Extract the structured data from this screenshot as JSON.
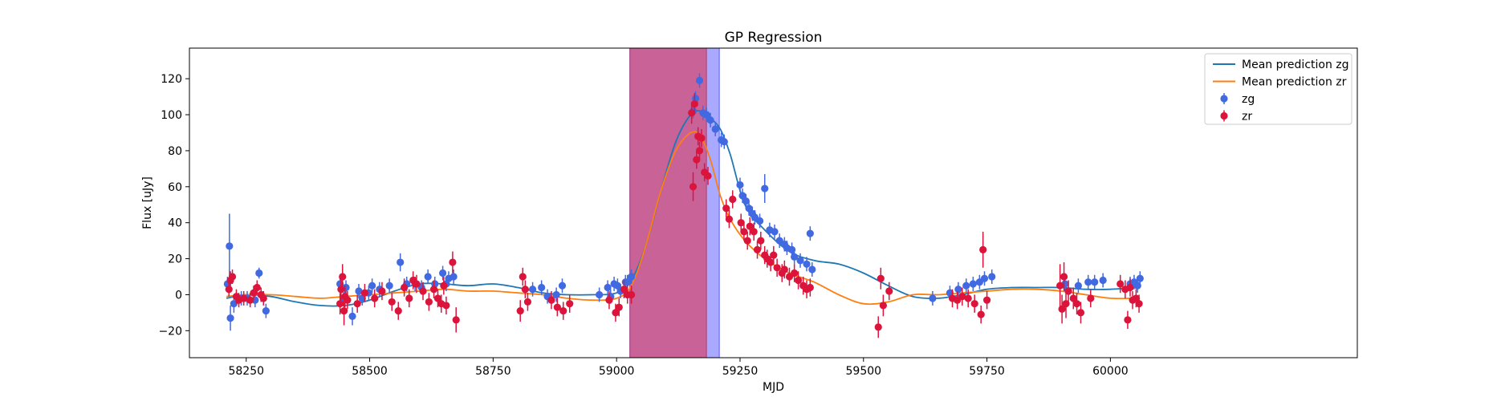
{
  "chart_data": {
    "type": "scatter",
    "title": "GP Regression",
    "xlabel": "MJD",
    "ylabel": "Flux [uJy]",
    "xlim": [
      58135,
      60500
    ],
    "ylim": [
      -35,
      137
    ],
    "xticks": [
      58250,
      58500,
      58750,
      59000,
      59250,
      59500,
      59750,
      60000
    ],
    "yticks": [
      -20,
      0,
      20,
      40,
      60,
      80,
      100,
      120
    ],
    "shaded_regions": [
      {
        "x0": 59027,
        "x1": 59208,
        "color": "#8c8cff"
      },
      {
        "x0": 59027,
        "x1": 59182,
        "color": "#cc5a8c"
      }
    ],
    "legend_position": "upper right",
    "series": [
      {
        "name": "Mean prediction zg",
        "kind": "line",
        "color": "#1f77b4",
        "x": [
          58210,
          58250,
          58300,
          58350,
          58400,
          58450,
          58500,
          58550,
          58600,
          58650,
          58700,
          58750,
          58800,
          58850,
          58900,
          58950,
          59000,
          59030,
          59060,
          59090,
          59120,
          59150,
          59170,
          59190,
          59210,
          59230,
          59260,
          59300,
          59350,
          59400,
          59450,
          59500,
          59550,
          59600,
          59650,
          59700,
          59750,
          59800,
          59850,
          59900,
          59950,
          60000,
          60050,
          60060
        ],
        "y": [
          -2,
          0,
          -1,
          -4,
          -6,
          -6,
          -3,
          2,
          6,
          6,
          5,
          6,
          4,
          1,
          0,
          0,
          1,
          8,
          28,
          58,
          85,
          100,
          102,
          98,
          92,
          78,
          50,
          36,
          24,
          19,
          17,
          12,
          5,
          -1,
          -2,
          0,
          3,
          4,
          4,
          4,
          3,
          3,
          4,
          4
        ]
      },
      {
        "name": "Mean prediction zr",
        "kind": "line",
        "color": "#ff7f0e",
        "x": [
          58210,
          58250,
          58300,
          58350,
          58400,
          58450,
          58500,
          58550,
          58600,
          58650,
          58700,
          58750,
          58800,
          58850,
          58900,
          58950,
          59000,
          59030,
          59060,
          59090,
          59120,
          59150,
          59170,
          59190,
          59210,
          59230,
          59260,
          59300,
          59350,
          59400,
          59450,
          59500,
          59550,
          59600,
          59650,
          59700,
          59750,
          59800,
          59850,
          59900,
          59950,
          60000,
          60050,
          60060
        ],
        "y": [
          -1,
          0,
          0,
          -1,
          -2,
          -1,
          0,
          1,
          2,
          3,
          2,
          2,
          1,
          0,
          -2,
          -3,
          -2,
          5,
          28,
          58,
          80,
          90,
          88,
          75,
          55,
          42,
          30,
          20,
          12,
          7,
          0,
          -5,
          -4,
          0,
          0,
          1,
          2,
          3,
          3,
          2,
          0,
          -2,
          -2,
          -2
        ]
      },
      {
        "name": "zg",
        "kind": "errorbar",
        "color": "#4169e1",
        "x": [
          58212,
          58216,
          58218,
          58225,
          58240,
          58252,
          58268,
          58276,
          58290,
          58440,
          58447,
          58452,
          58465,
          58478,
          58485,
          58498,
          58505,
          58520,
          58540,
          58562,
          58575,
          58592,
          58605,
          58618,
          58632,
          58648,
          58655,
          58660,
          58670,
          58830,
          58848,
          58860,
          58878,
          58890,
          58965,
          58982,
          58988,
          58995,
          59002,
          59008,
          59018,
          59022,
          59030,
          59155,
          59160,
          59168,
          59175,
          59182,
          59190,
          59200,
          59212,
          59218,
          59250,
          59255,
          59262,
          59268,
          59275,
          59280,
          59290,
          59300,
          59310,
          59320,
          59330,
          59340,
          59345,
          59355,
          59360,
          59372,
          59385,
          59392,
          59396,
          59640,
          59675,
          59692,
          59708,
          59722,
          59735,
          59745,
          59760,
          59908,
          59935,
          59955,
          59968,
          59985,
          60040,
          60048,
          60055,
          60060
        ],
        "y": [
          6,
          27,
          -13,
          -5,
          -2,
          -2,
          -3,
          12,
          -9,
          6,
          -2,
          4,
          -12,
          2,
          -2,
          1,
          5,
          3,
          5,
          18,
          6,
          6,
          4,
          10,
          6,
          12,
          6,
          9,
          10,
          3,
          4,
          -1,
          0,
          5,
          0,
          4,
          -1,
          6,
          5,
          2,
          7,
          7,
          10,
          102,
          109,
          119,
          101,
          100,
          97,
          92,
          86,
          85,
          61,
          55,
          52,
          48,
          45,
          43,
          41,
          59,
          36,
          35,
          30,
          28,
          26,
          25,
          21,
          19,
          17,
          34,
          14,
          -2,
          1,
          3,
          5,
          6,
          7,
          9,
          10,
          6,
          5,
          7,
          7,
          8,
          6,
          7,
          5,
          9
        ],
        "yerr": [
          4,
          18,
          7,
          5,
          4,
          4,
          4,
          3,
          4,
          5,
          4,
          4,
          5,
          4,
          4,
          4,
          4,
          4,
          4,
          5,
          4,
          4,
          4,
          4,
          4,
          4,
          4,
          4,
          4,
          4,
          4,
          4,
          4,
          4,
          4,
          4,
          4,
          4,
          4,
          4,
          4,
          4,
          4,
          4,
          4,
          4,
          4,
          4,
          4,
          4,
          4,
          4,
          4,
          4,
          4,
          4,
          4,
          4,
          4,
          8,
          4,
          4,
          4,
          4,
          4,
          4,
          4,
          4,
          4,
          4,
          4,
          4,
          4,
          4,
          4,
          4,
          4,
          4,
          4,
          4,
          4,
          4,
          4,
          4,
          4,
          4,
          4,
          4
        ]
      },
      {
        "name": "zr",
        "kind": "errorbar",
        "color": "#dc143c",
        "x": [
          58215,
          58218,
          58222,
          58230,
          58235,
          58245,
          58258,
          58265,
          58272,
          58280,
          58285,
          58440,
          58442,
          58445,
          58448,
          58450,
          58455,
          58475,
          58490,
          58510,
          58525,
          58545,
          58558,
          58570,
          58580,
          58588,
          58595,
          58608,
          58620,
          58630,
          58638,
          58645,
          58650,
          58655,
          58668,
          58675,
          58805,
          58810,
          58815,
          58820,
          58868,
          58880,
          58892,
          58905,
          58985,
          58998,
          59005,
          59015,
          59022,
          59030,
          59152,
          59155,
          59158,
          59162,
          59165,
          59168,
          59172,
          59178,
          59185,
          59222,
          59228,
          59235,
          59252,
          59258,
          59265,
          59270,
          59278,
          59285,
          59292,
          59300,
          59305,
          59312,
          59318,
          59325,
          59335,
          59340,
          59350,
          59360,
          59368,
          59378,
          59385,
          59392,
          59530,
          59535,
          59540,
          59552,
          59680,
          59690,
          59700,
          59712,
          59725,
          59738,
          59742,
          59750,
          59898,
          59902,
          59906,
          59910,
          59915,
          59925,
          59932,
          59940,
          59960,
          60020,
          60030,
          60035,
          60040,
          60045,
          60052,
          60058
        ],
        "y": [
          3,
          8,
          10,
          -1,
          -3,
          -2,
          -3,
          1,
          4,
          0,
          -2,
          -5,
          3,
          10,
          -9,
          -1,
          -3,
          -5,
          1,
          -2,
          2,
          -4,
          -9,
          4,
          -2,
          8,
          6,
          2,
          -4,
          3,
          -2,
          -5,
          5,
          -6,
          18,
          -14,
          -9,
          10,
          3,
          -4,
          -3,
          -7,
          -9,
          -5,
          -3,
          -10,
          -7,
          3,
          0,
          0,
          101,
          60,
          106,
          75,
          88,
          80,
          87,
          68,
          66,
          48,
          42,
          53,
          40,
          35,
          30,
          38,
          35,
          25,
          30,
          22,
          20,
          18,
          22,
          15,
          12,
          14,
          10,
          12,
          8,
          5,
          3,
          4,
          -18,
          9,
          -6,
          2,
          -2,
          -3,
          -1,
          -2,
          -5,
          -11,
          25,
          -3,
          5,
          -8,
          10,
          -5,
          2,
          -2,
          -5,
          -10,
          -2,
          6,
          3,
          -14,
          4,
          -3,
          -2,
          -5
        ],
        "yerr": [
          4,
          5,
          4,
          4,
          4,
          4,
          4,
          4,
          4,
          4,
          4,
          6,
          6,
          7,
          8,
          6,
          5,
          5,
          5,
          5,
          5,
          5,
          5,
          5,
          5,
          5,
          5,
          5,
          5,
          5,
          5,
          5,
          5,
          5,
          6,
          7,
          6,
          5,
          5,
          5,
          5,
          5,
          5,
          5,
          5,
          5,
          5,
          5,
          5,
          5,
          6,
          8,
          6,
          5,
          5,
          5,
          5,
          5,
          5,
          5,
          5,
          5,
          5,
          5,
          5,
          5,
          5,
          5,
          5,
          5,
          5,
          5,
          5,
          5,
          5,
          5,
          5,
          5,
          5,
          5,
          5,
          5,
          6,
          6,
          6,
          5,
          5,
          5,
          5,
          5,
          5,
          5,
          10,
          5,
          12,
          8,
          8,
          8,
          6,
          6,
          6,
          6,
          5,
          5,
          5,
          5,
          5,
          5,
          5,
          5
        ]
      }
    ]
  }
}
